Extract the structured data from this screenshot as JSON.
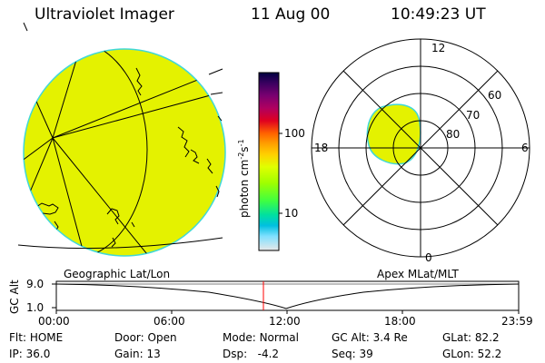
{
  "header": {
    "instrument": "Ultraviolet Imager",
    "date": "11 Aug 00",
    "time": "10:49:23 UT"
  },
  "colorbar": {
    "unit_base": "photon cm",
    "unit_exp1": "-2",
    "unit_mid": "s",
    "unit_exp2": "-1",
    "tick_high": "100",
    "tick_low": "10",
    "colors": [
      "#000040",
      "#3a0060",
      "#7a0070",
      "#b00060",
      "#e00020",
      "#ff6000",
      "#ffa000",
      "#ffd000",
      "#e0ff00",
      "#a0ff00",
      "#40ff40",
      "#00e0a0",
      "#00c0e0",
      "#80e0ff",
      "#e0e0e0"
    ]
  },
  "left_panel": {
    "label": "Geographic Lat/Lon"
  },
  "right_panel": {
    "label": "Apex MLat/MLT",
    "mlt_labels": {
      "top": "12",
      "left": "18",
      "right": "6",
      "bottom": "0"
    },
    "lat_labels": [
      "60",
      "70",
      "80"
    ]
  },
  "altitude_strip": {
    "ylabel": "GC Alt",
    "y_high": "9.0",
    "y_low": "1.0",
    "time_ticks": [
      "00:00",
      "06:00",
      "12:00",
      "18:00",
      "23:59"
    ],
    "current_time_marker": "10:49"
  },
  "status": {
    "row1": [
      {
        "label": "Flt:",
        "value": "HOME"
      },
      {
        "label": "Door:",
        "value": "Open"
      },
      {
        "label": "Mode:",
        "value": "Normal"
      },
      {
        "label": "GC Alt:",
        "value": "3.4 Re"
      },
      {
        "label": "GLat:",
        "value": "82.2"
      }
    ],
    "row2": [
      {
        "label": "IP:",
        "value": "36.0"
      },
      {
        "label": "Gain:",
        "value": "13"
      },
      {
        "label": "Dsp:",
        "value": "-4.2"
      },
      {
        "label": "Seq:",
        "value": "39"
      },
      {
        "label": "GLon:",
        "value": "52.2"
      }
    ]
  }
}
